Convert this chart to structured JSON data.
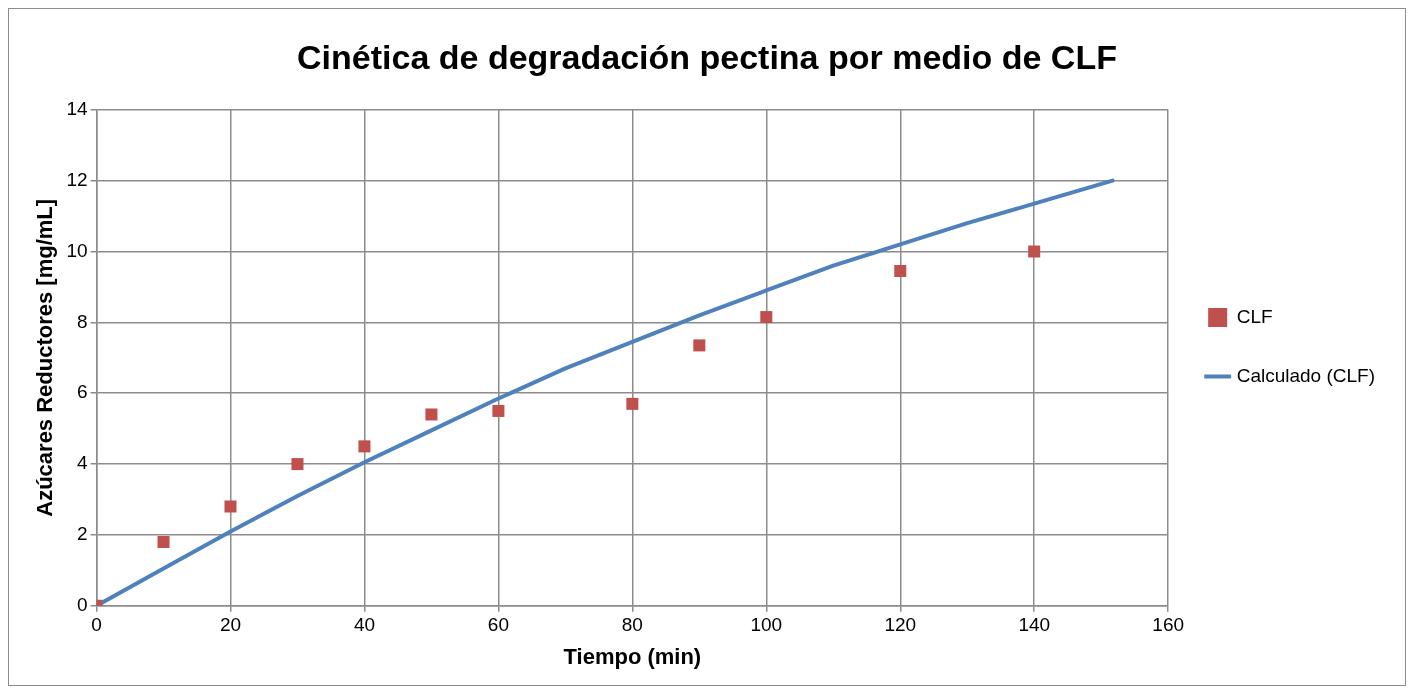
{
  "chart_data": {
    "type": "scatter",
    "title": "Cinética de degradación pectina por medio de CLF",
    "xlabel": "Tiempo (min)",
    "ylabel": "Azúcares Reductores [mg/mL]",
    "xlim": [
      0,
      160
    ],
    "xticks": [
      0,
      20,
      40,
      60,
      80,
      100,
      120,
      140,
      160
    ],
    "ylim": [
      0,
      14
    ],
    "yticks": [
      0,
      2,
      4,
      6,
      8,
      10,
      12,
      14
    ],
    "grid": true,
    "legend": "right",
    "series": [
      {
        "name": "CLF",
        "marker": "square",
        "color": "#c0504d",
        "x": [
          0,
          10,
          20,
          30,
          40,
          50,
          60,
          80,
          90,
          100,
          120,
          140
        ],
        "values": [
          0,
          1.8,
          2.8,
          4.0,
          4.5,
          5.4,
          5.5,
          5.7,
          7.35,
          8.15,
          9.45,
          10.0
        ]
      },
      {
        "name": "Calculado (CLF)",
        "type": "line",
        "marker": "none",
        "line_style": "solid",
        "color": "#4f81bd",
        "x": [
          0,
          10,
          20,
          30,
          40,
          50,
          60,
          70,
          80,
          90,
          100,
          110,
          120,
          130,
          140,
          151.7
        ],
        "values": [
          0,
          1.05,
          2.1,
          3.1,
          4.05,
          4.95,
          5.85,
          6.7,
          7.45,
          8.2,
          8.9,
          9.6,
          10.2,
          10.8,
          11.35,
          12
        ]
      }
    ]
  }
}
